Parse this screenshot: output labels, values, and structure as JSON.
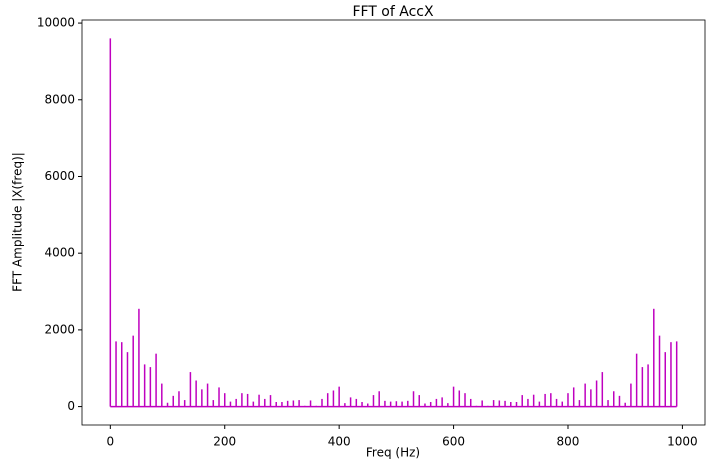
{
  "chart_data": {
    "type": "stem",
    "title": "FFT of AccX",
    "xlabel": "Freq (Hz)",
    "ylabel": "FFT Amplitude |X(freq)|",
    "color": "#bf00bf",
    "x": [
      0,
      10,
      20,
      30,
      40,
      50,
      60,
      70,
      80,
      90,
      100,
      110,
      120,
      130,
      140,
      150,
      160,
      170,
      180,
      190,
      200,
      210,
      220,
      230,
      240,
      250,
      260,
      270,
      280,
      290,
      300,
      310,
      320,
      330,
      340,
      350,
      360,
      370,
      380,
      390,
      400,
      410,
      420,
      430,
      440,
      450,
      460,
      470,
      480,
      490,
      500,
      510,
      520,
      530,
      540,
      550,
      560,
      570,
      580,
      590,
      600,
      610,
      620,
      630,
      640,
      650,
      660,
      670,
      680,
      690,
      700,
      710,
      720,
      730,
      740,
      750,
      760,
      770,
      780,
      790,
      800,
      810,
      820,
      830,
      840,
      850,
      860,
      870,
      880,
      890,
      900,
      910,
      920,
      930,
      940,
      950,
      960,
      970,
      980,
      990
    ],
    "values": [
      9600,
      1700,
      1680,
      1420,
      1850,
      2550,
      1100,
      1030,
      1380,
      600,
      100,
      280,
      400,
      170,
      900,
      680,
      450,
      600,
      170,
      500,
      350,
      130,
      200,
      350,
      330,
      130,
      310,
      200,
      300,
      120,
      120,
      150,
      160,
      170,
      20,
      160,
      20,
      200,
      350,
      420,
      520,
      90,
      240,
      200,
      120,
      80,
      300,
      400,
      150,
      130,
      140,
      130,
      150,
      400,
      300,
      80,
      120,
      200,
      240,
      90,
      520,
      420,
      350,
      200,
      20,
      160,
      20,
      170,
      160,
      150,
      120,
      120,
      300,
      200,
      310,
      130,
      330,
      350,
      200,
      130,
      350,
      500,
      170,
      600,
      450,
      680,
      900,
      170,
      400,
      280,
      100,
      600,
      1380,
      1030,
      1100,
      2550,
      1850,
      1420,
      1680,
      1700
    ],
    "xlim": [
      -49.5,
      1039.5
    ],
    "ylim": [
      -480,
      10080
    ],
    "xticks": [
      0,
      200,
      400,
      600,
      800,
      1000
    ],
    "yticks": [
      0,
      2000,
      4000,
      6000,
      8000,
      10000
    ]
  }
}
